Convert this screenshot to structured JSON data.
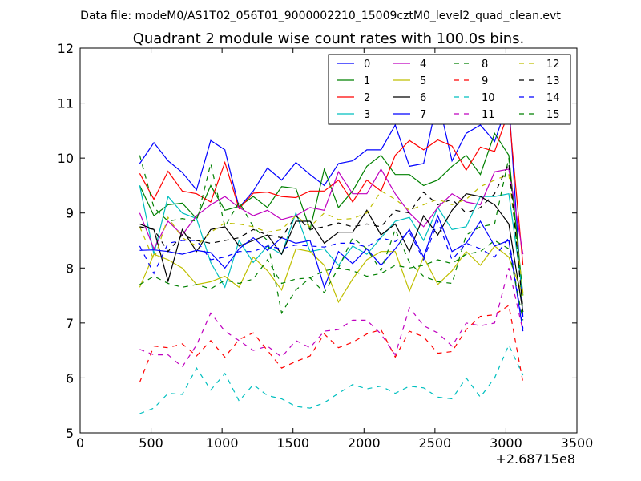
{
  "chart_data": {
    "type": "line",
    "suptitle": "Data file: modeM0/AS1T02_056T01_9000002210_15009cztM0_level2_quad_clean.evt",
    "title": "Quadrant 2 module wise count rates with 100.0s bins.",
    "xlabel": "",
    "ylabel": "",
    "x_offset_label": "+2.68715e8",
    "xlim": [
      0,
      3500
    ],
    "ylim": [
      5,
      12
    ],
    "xticks": [
      "0",
      "500",
      "1000",
      "1500",
      "2000",
      "2500",
      "3000",
      "3500"
    ],
    "yticks": [
      "5",
      "6",
      "7",
      "8",
      "9",
      "10",
      "11",
      "12"
    ],
    "grid": false,
    "legend_position": "top-right",
    "x": [
      420,
      520,
      620,
      720,
      820,
      920,
      1020,
      1120,
      1220,
      1320,
      1420,
      1520,
      1620,
      1720,
      1820,
      1920,
      2020,
      2120,
      2220,
      2320,
      2420,
      2520,
      2620,
      2720,
      2820,
      2920,
      3020,
      3120
    ],
    "series": [
      {
        "name": "0",
        "color": "#0000ff",
        "dash": "solid",
        "values": [
          9.9,
          10.28,
          9.95,
          9.74,
          9.42,
          10.32,
          10.15,
          9.1,
          9.4,
          9.82,
          9.6,
          9.92,
          9.7,
          9.5,
          9.9,
          9.95,
          10.15,
          10.15,
          10.6,
          9.85,
          9.9,
          11.08,
          9.95,
          10.45,
          10.6,
          10.3,
          11.05,
          7.1
        ]
      },
      {
        "name": "1",
        "color": "#008000",
        "dash": "solid",
        "values": [
          9.5,
          8.95,
          9.15,
          9.18,
          8.9,
          9.5,
          9.05,
          9.12,
          9.3,
          9.1,
          9.48,
          9.45,
          8.7,
          9.8,
          9.1,
          9.4,
          9.85,
          10.05,
          9.7,
          9.7,
          9.5,
          9.6,
          9.85,
          10.05,
          9.7,
          10.45,
          10.05,
          7.5
        ]
      },
      {
        "name": "2",
        "color": "#ff0000",
        "dash": "solid",
        "values": [
          9.72,
          9.25,
          9.76,
          9.4,
          9.35,
          9.2,
          9.92,
          9.08,
          9.36,
          9.38,
          9.3,
          9.28,
          9.4,
          9.4,
          9.6,
          9.2,
          9.6,
          9.4,
          10.05,
          10.32,
          10.15,
          10.33,
          10.22,
          9.78,
          10.2,
          10.12,
          10.85,
          8.05
        ]
      },
      {
        "name": "3",
        "color": "#00bfbf",
        "dash": "solid",
        "values": [
          9.5,
          8.25,
          9.3,
          9.0,
          8.9,
          8.1,
          7.65,
          8.5,
          8.1,
          8.4,
          8.25,
          9.0,
          8.3,
          8.35,
          8.05,
          8.4,
          8.25,
          8.55,
          8.85,
          8.92,
          8.5,
          9.1,
          8.7,
          8.75,
          9.3,
          9.3,
          9.35,
          7.5
        ]
      },
      {
        "name": "4",
        "color": "#bf00bf",
        "dash": "solid",
        "values": [
          9.0,
          8.35,
          8.85,
          8.6,
          8.95,
          9.15,
          9.3,
          9.1,
          8.95,
          9.05,
          8.88,
          8.95,
          9.1,
          9.05,
          9.75,
          9.35,
          9.35,
          9.8,
          9.35,
          9.0,
          8.75,
          9.1,
          9.35,
          9.2,
          9.15,
          9.75,
          9.8,
          8.25
        ]
      },
      {
        "name": "5",
        "color": "#bfbf00",
        "dash": "solid",
        "values": [
          7.65,
          8.25,
          8.15,
          8.0,
          7.7,
          7.75,
          7.85,
          7.65,
          8.2,
          7.95,
          7.6,
          8.35,
          8.3,
          8.05,
          7.38,
          7.8,
          8.15,
          8.3,
          8.3,
          7.58,
          8.2,
          7.7,
          7.95,
          8.3,
          8.05,
          8.4,
          8.2,
          7.5
        ]
      },
      {
        "name": "6",
        "color": "#000000",
        "dash": "solid",
        "values": [
          8.8,
          8.7,
          7.76,
          8.7,
          8.3,
          8.7,
          8.75,
          8.4,
          8.5,
          8.6,
          8.25,
          8.85,
          8.85,
          8.45,
          8.65,
          8.65,
          9.05,
          8.6,
          8.8,
          8.3,
          8.95,
          8.6,
          9.05,
          9.35,
          9.3,
          9.15,
          8.8,
          7.2
        ]
      },
      {
        "name": "7",
        "color": "#0000ff",
        "dash": "solid",
        "values": [
          8.32,
          8.33,
          8.3,
          8.25,
          8.32,
          8.28,
          8.0,
          8.35,
          8.55,
          8.32,
          8.55,
          8.45,
          8.5,
          7.65,
          8.3,
          8.08,
          8.35,
          8.05,
          8.35,
          8.7,
          8.2,
          8.95,
          8.3,
          8.45,
          8.85,
          8.4,
          8.5,
          6.85
        ]
      },
      {
        "name": "8",
        "color": "#008000",
        "dash": "dashed",
        "values": [
          10.05,
          9.1,
          8.85,
          8.9,
          8.85,
          9.9,
          8.75,
          9.2,
          8.75,
          8.5,
          7.18,
          7.6,
          7.82,
          7.55,
          8.0,
          8.55,
          8.35,
          7.95,
          8.7,
          8.1,
          7.85,
          7.75,
          7.72,
          8.6,
          8.75,
          8.8,
          10.0,
          7.2
        ]
      },
      {
        "name": "9",
        "color": "#ff0000",
        "dash": "dashed",
        "values": [
          5.92,
          6.58,
          6.55,
          6.62,
          6.4,
          6.68,
          6.38,
          6.7,
          6.82,
          6.5,
          6.18,
          6.3,
          6.4,
          6.8,
          6.55,
          6.65,
          6.8,
          6.88,
          6.38,
          6.85,
          6.75,
          6.45,
          6.48,
          6.88,
          7.12,
          7.15,
          7.32,
          5.92
        ]
      },
      {
        "name": "10",
        "color": "#00bfbf",
        "dash": "dashed",
        "values": [
          5.35,
          5.45,
          5.72,
          5.7,
          6.18,
          5.78,
          6.08,
          5.58,
          5.88,
          5.68,
          5.62,
          5.48,
          5.45,
          5.55,
          5.72,
          5.88,
          5.8,
          5.85,
          5.72,
          5.85,
          5.82,
          5.65,
          5.62,
          6.0,
          5.65,
          6.0,
          6.6,
          6.05
        ]
      },
      {
        "name": "11",
        "color": "#bf00bf",
        "dash": "dashed",
        "values": [
          6.52,
          6.42,
          6.42,
          6.2,
          6.6,
          7.18,
          6.85,
          6.68,
          6.5,
          6.58,
          6.38,
          6.68,
          6.55,
          6.85,
          6.88,
          7.05,
          7.05,
          6.8,
          6.42,
          7.28,
          6.95,
          6.82,
          6.58,
          7.0,
          6.95,
          7.0,
          8.0,
          6.85
        ]
      },
      {
        "name": "12",
        "color": "#bfbf00",
        "dash": "dashed",
        "values": [
          8.75,
          8.15,
          8.92,
          8.55,
          8.4,
          8.65,
          8.82,
          8.8,
          8.75,
          8.65,
          8.7,
          8.95,
          8.75,
          9.0,
          8.88,
          8.9,
          9.0,
          9.4,
          9.25,
          9.05,
          9.15,
          9.25,
          9.15,
          9.25,
          9.48,
          9.6,
          9.7,
          7.55
        ]
      },
      {
        "name": "13",
        "color": "#000000",
        "dash": "dashed",
        "values": [
          8.75,
          8.7,
          8.3,
          8.6,
          8.5,
          8.45,
          8.5,
          8.55,
          8.7,
          8.6,
          8.55,
          8.95,
          8.7,
          8.75,
          8.82,
          8.75,
          8.8,
          8.75,
          9.05,
          9.0,
          9.38,
          9.15,
          9.25,
          9.0,
          9.1,
          9.35,
          9.9,
          7.25
        ]
      },
      {
        "name": "14",
        "color": "#0000ff",
        "dash": "dashed",
        "values": [
          8.4,
          7.9,
          8.45,
          8.5,
          8.5,
          8.15,
          8.2,
          8.3,
          8.3,
          8.4,
          8.35,
          8.42,
          8.4,
          8.38,
          8.45,
          8.45,
          8.38,
          8.55,
          8.48,
          8.65,
          8.15,
          8.85,
          8.15,
          8.45,
          8.35,
          8.2,
          8.55,
          6.9
        ]
      },
      {
        "name": "15",
        "color": "#008000",
        "dash": "dashed",
        "values": [
          7.7,
          7.85,
          7.72,
          7.65,
          7.7,
          7.62,
          7.78,
          7.72,
          7.8,
          8.15,
          7.72,
          7.8,
          7.82,
          7.95,
          8.0,
          7.95,
          7.85,
          7.9,
          8.05,
          8.0,
          8.05,
          8.15,
          8.08,
          8.25,
          8.3,
          8.5,
          8.35,
          7.05
        ]
      }
    ]
  }
}
